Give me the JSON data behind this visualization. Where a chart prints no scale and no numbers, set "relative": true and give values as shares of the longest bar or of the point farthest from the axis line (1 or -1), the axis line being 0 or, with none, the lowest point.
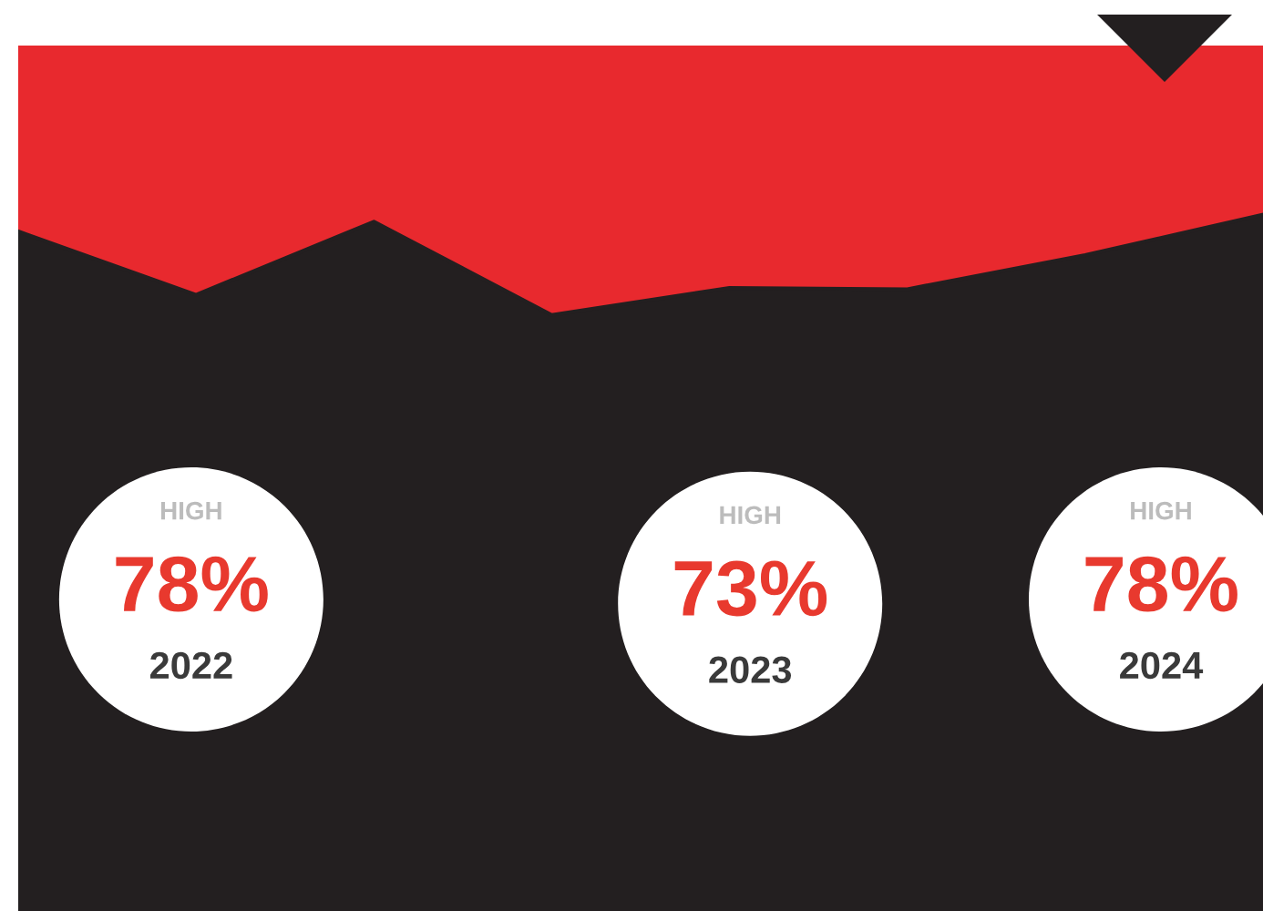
{
  "chart_data": {
    "type": "line",
    "relative": true,
    "categories": [
      null,
      null,
      null,
      null,
      null,
      null,
      null,
      null
    ],
    "series": [
      {
        "color": "#231f20",
        "values": [
          0.976,
          0.885,
          0.99,
          0.856,
          0.895,
          0.893,
          0.942,
          1.0
        ]
      }
    ],
    "annotations": [
      "HIGH",
      "78%",
      "2022",
      "HIGH",
      "73%",
      "2023",
      "HIGH",
      "78%",
      "2024"
    ]
  }
}
